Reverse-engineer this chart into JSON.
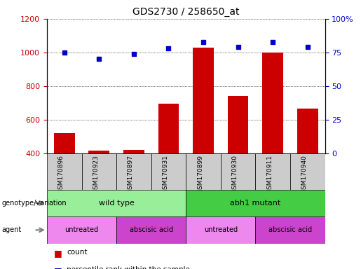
{
  "title": "GDS2730 / 258650_at",
  "samples": [
    "GSM170896",
    "GSM170923",
    "GSM170897",
    "GSM170931",
    "GSM170899",
    "GSM170930",
    "GSM170911",
    "GSM170940"
  ],
  "counts": [
    520,
    415,
    420,
    695,
    1030,
    740,
    1000,
    665
  ],
  "percentiles": [
    75,
    70,
    74,
    78,
    83,
    79,
    83,
    79
  ],
  "ymin": 400,
  "ymax": 1200,
  "yticks_left": [
    400,
    600,
    800,
    1000,
    1200
  ],
  "yticks_right": [
    0,
    25,
    50,
    75,
    100
  ],
  "bar_color": "#cc0000",
  "dot_color": "#0000cc",
  "genotype_groups": [
    {
      "label": "wild type",
      "start": 0,
      "end": 4,
      "color": "#99ee99"
    },
    {
      "label": "abh1 mutant",
      "start": 4,
      "end": 8,
      "color": "#44cc44"
    }
  ],
  "agent_groups": [
    {
      "label": "untreated",
      "start": 0,
      "end": 2,
      "color": "#ee88ee"
    },
    {
      "label": "abscisic acid",
      "start": 2,
      "end": 4,
      "color": "#cc44cc"
    },
    {
      "label": "untreated",
      "start": 4,
      "end": 6,
      "color": "#ee88ee"
    },
    {
      "label": "abscisic acid",
      "start": 6,
      "end": 8,
      "color": "#cc44cc"
    }
  ],
  "tick_area_color": "#cccccc",
  "legend_count_color": "#cc0000",
  "legend_pct_color": "#0000cc"
}
